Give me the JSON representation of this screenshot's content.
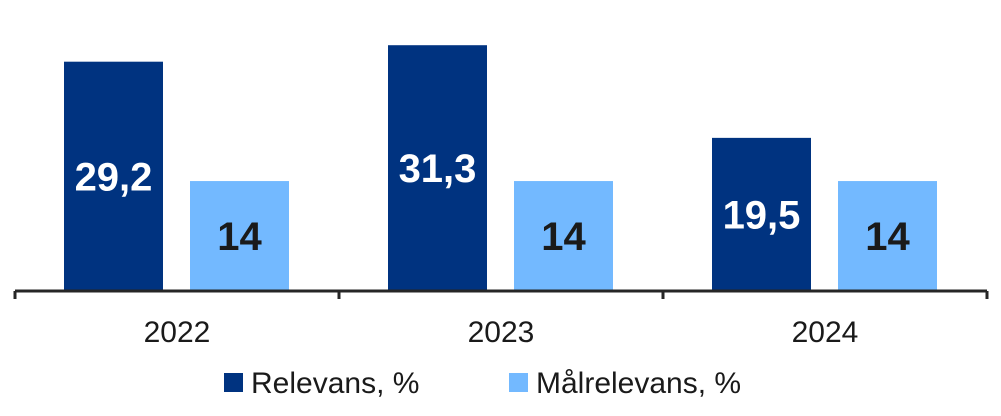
{
  "chart_data": {
    "type": "bar",
    "categories": [
      "2022",
      "2023",
      "2024"
    ],
    "series": [
      {
        "name": "Relevans, %",
        "values": [
          29.2,
          31.3,
          19.5
        ],
        "labels": [
          "29,2",
          "31,3",
          "19,5"
        ],
        "color": "#003380",
        "label_color": "#ffffff"
      },
      {
        "name": "Målrelevans, %",
        "values": [
          14,
          14,
          14
        ],
        "labels": [
          "14",
          "14",
          "14"
        ],
        "color": "#73b9ff",
        "label_color": "#1a1a1a"
      }
    ],
    "ylim": [
      0,
      34
    ],
    "grid": false,
    "legend": "bottom",
    "axis_color": "#262626"
  }
}
